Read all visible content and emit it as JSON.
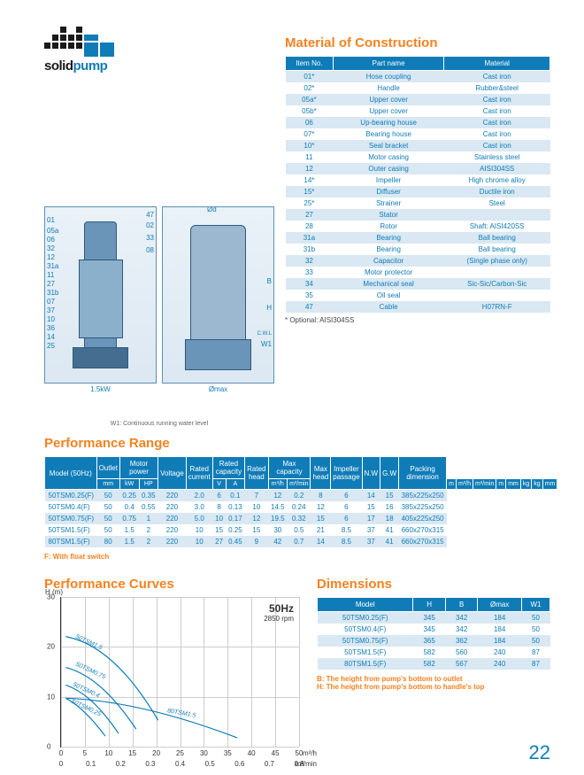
{
  "logo_text_a": "solid",
  "logo_text_b": "pump",
  "sections": {
    "material": "Material of Construction",
    "perf_range": "Performance Range",
    "curves": "Performance Curves",
    "dimensions": "Dimensions"
  },
  "material": {
    "headers": [
      "Item No.",
      "Part name",
      "Material"
    ],
    "rows": [
      [
        "01*",
        "Hose coupling",
        "Cast iron"
      ],
      [
        "02*",
        "Handle",
        "Rubber&steel"
      ],
      [
        "05a*",
        "Upper cover",
        "Cast iron"
      ],
      [
        "05b*",
        "Upper cover",
        "Cast iron"
      ],
      [
        "06",
        "Up-bearing house",
        "Cast iron"
      ],
      [
        "07*",
        "Bearing house",
        "Cast iron"
      ],
      [
        "10*",
        "Seal bracket",
        "Cast iron"
      ],
      [
        "11",
        "Motor casing",
        "Stainless steel"
      ],
      [
        "12",
        "Outer casing",
        "AISI304SS"
      ],
      [
        "14*",
        "Impeller",
        "High chrome alloy"
      ],
      [
        "15*",
        "Diffuser",
        "Ductile iron"
      ],
      [
        "25*",
        "Strainer",
        "Steel"
      ],
      [
        "27",
        "Stator",
        ""
      ],
      [
        "28",
        "Rotor",
        "Shaft: AISI420SS"
      ],
      [
        "31a",
        "Bearing",
        "Ball bearing"
      ],
      [
        "31b",
        "Bearing",
        "Ball bearing"
      ],
      [
        "32",
        "Capacitor",
        "(Single phase only)"
      ],
      [
        "33",
        "Motor protector",
        ""
      ],
      [
        "34",
        "Mechanical seal",
        "Sic-Sic/Carbon-Sic"
      ],
      [
        "35",
        "Oil seal",
        ""
      ],
      [
        "47",
        "Cable",
        "H07RN-F"
      ]
    ],
    "footnote": "* Optional: AISI304SS"
  },
  "diagram": {
    "cap_left": "1.5kW",
    "cap_right": "Ømax",
    "sub": "W1: Continuous running water level",
    "callouts_left": [
      "47",
      "02",
      "01",
      "33",
      "05a",
      "06",
      "32",
      "08",
      "12",
      "31a",
      "11",
      "27",
      "31b",
      "07",
      "37",
      "10",
      "36",
      "14",
      "25"
    ],
    "callouts_right": [
      "Ød",
      "B",
      "H",
      "C.W.L",
      "W1"
    ]
  },
  "perf": {
    "top_headers": [
      "Model (50Hz)",
      "Outlet",
      "Motor power",
      "Voltage",
      "Rated current",
      "Rated capacity",
      "Rated head",
      "Max capacity",
      "Max head",
      "Impeller passage",
      "N.W",
      "G.W",
      "Packing dimension"
    ],
    "sub_headers": [
      "",
      "mm",
      "kW",
      "HP",
      "V",
      "A",
      "m³/h",
      "m³/min",
      "m",
      "m³/h",
      "m³/min",
      "m",
      "mm",
      "kg",
      "kg",
      "mm"
    ],
    "rows": [
      [
        "50TSM0.25(F)",
        "50",
        "0.25",
        "0.35",
        "220",
        "2.0",
        "6",
        "0.1",
        "7",
        "12",
        "0.2",
        "8",
        "6",
        "14",
        "15",
        "385x225x250"
      ],
      [
        "50TSM0.4(F)",
        "50",
        "0.4",
        "0.55",
        "220",
        "3.0",
        "8",
        "0.13",
        "10",
        "14.5",
        "0.24",
        "12",
        "6",
        "15",
        "16",
        "385x225x250"
      ],
      [
        "50TSM0.75(F)",
        "50",
        "0.75",
        "1",
        "220",
        "5.0",
        "10",
        "0.17",
        "12",
        "19.5",
        "0.32",
        "15",
        "6",
        "17",
        "18",
        "405x225x250"
      ],
      [
        "50TSM1.5(F)",
        "50",
        "1.5",
        "2",
        "220",
        "10",
        "15",
        "0.25",
        "15",
        "30",
        "0.5",
        "21",
        "8.5",
        "37",
        "41",
        "660x270x315"
      ],
      [
        "80TSM1.5(F)",
        "80",
        "1.5",
        "2",
        "220",
        "10",
        "27",
        "0.45",
        "9",
        "42",
        "0.7",
        "14",
        "8.5",
        "37",
        "41",
        "660x270x315"
      ]
    ],
    "note": "F: With float switch"
  },
  "curves": {
    "freq": "50Hz",
    "rpm": "2850 rpm",
    "y_title": "H (m)",
    "y_ticks": [
      "30",
      "20",
      "10",
      "0"
    ],
    "x_ticks_top": [
      "0",
      "5",
      "10",
      "15",
      "20",
      "25",
      "30",
      "35",
      "40",
      "45",
      "50"
    ],
    "x_unit_top": "m³/h",
    "x_ticks_bot": [
      "0",
      "0.1",
      "0.2",
      "0.3",
      "0.4",
      "0.5",
      "0.6",
      "0.7",
      "0.8"
    ],
    "x_unit_bot": "m³/min",
    "labels": [
      "50TSM1.5",
      "50TSM0.75",
      "50TSM0.4",
      "50TSM0.25",
      "80TSM1.5"
    ]
  },
  "dims": {
    "headers": [
      "Model",
      "H",
      "B",
      "Ømax",
      "W1"
    ],
    "rows": [
      [
        "50TSM0.25(F)",
        "345",
        "342",
        "184",
        "50"
      ],
      [
        "50TSM0.4(F)",
        "345",
        "342",
        "184",
        "50"
      ],
      [
        "50TSM0.75(F)",
        "365",
        "362",
        "184",
        "50"
      ],
      [
        "50TSM1.5(F)",
        "582",
        "560",
        "240",
        "87"
      ],
      [
        "80TSM1.5(F)",
        "582",
        "567",
        "240",
        "87"
      ]
    ],
    "note_b": "B: The height from pump's bottom to outlet",
    "note_h": "H: The height from pump's bottom to handle's top"
  },
  "page_number": "22"
}
